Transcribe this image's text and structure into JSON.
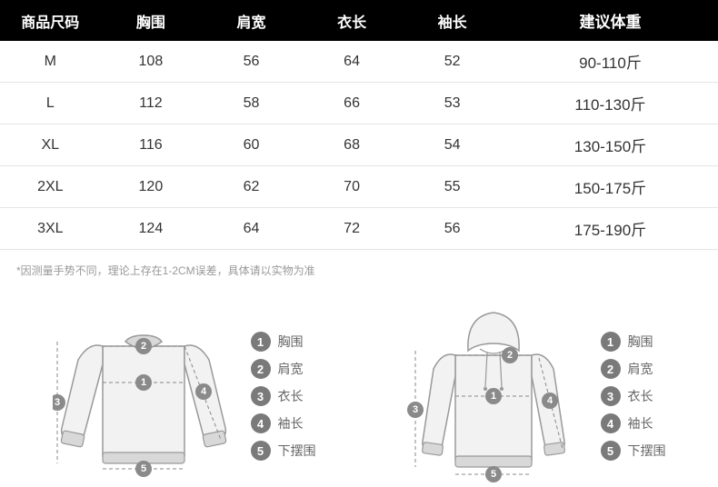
{
  "table": {
    "headers": [
      "商品尺码",
      "胸围",
      "肩宽",
      "衣长",
      "袖长",
      "建议体重"
    ],
    "rows": [
      [
        "M",
        "108",
        "56",
        "64",
        "52",
        "90-110斤"
      ],
      [
        "L",
        "112",
        "58",
        "66",
        "53",
        "110-130斤"
      ],
      [
        "XL",
        "116",
        "60",
        "68",
        "54",
        "130-150斤"
      ],
      [
        "2XL",
        "120",
        "62",
        "70",
        "55",
        "150-175斤"
      ],
      [
        "3XL",
        "124",
        "64",
        "72",
        "56",
        "175-190斤"
      ]
    ],
    "header_bg": "#000000",
    "header_color": "#ffffff",
    "cell_color": "#333333",
    "border_color": "#e5e5e5"
  },
  "note": "*因测量手势不同，理论上存在1-2CM误差，具体请以实物为准",
  "legend": {
    "items": [
      {
        "num": "1",
        "label": "胸围"
      },
      {
        "num": "2",
        "label": "肩宽"
      },
      {
        "num": "3",
        "label": "衣长"
      },
      {
        "num": "4",
        "label": "袖长"
      },
      {
        "num": "5",
        "label": "下摆围"
      }
    ],
    "badge_bg": "#7a7a7a",
    "badge_color": "#ffffff",
    "label_color": "#666666"
  },
  "diagram": {
    "stroke": "#999999",
    "fill": "#f2f2f2",
    "cuff_fill": "#d8d8d8",
    "dash": "#888888"
  }
}
